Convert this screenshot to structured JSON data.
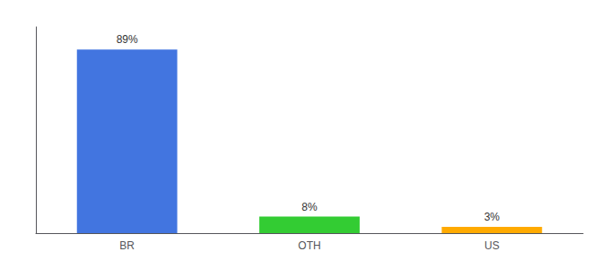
{
  "chart_data": {
    "type": "bar",
    "categories": [
      "BR",
      "OTH",
      "US"
    ],
    "values": [
      89,
      8,
      3
    ],
    "value_labels": [
      "89%",
      "8%",
      "3%"
    ],
    "data_labels": true,
    "colors": [
      "#4275e0",
      "#33cc33",
      "#ffaa00"
    ],
    "ylim": [
      0,
      100
    ],
    "yticks": [],
    "tick_labels": "x",
    "grid": false
  }
}
